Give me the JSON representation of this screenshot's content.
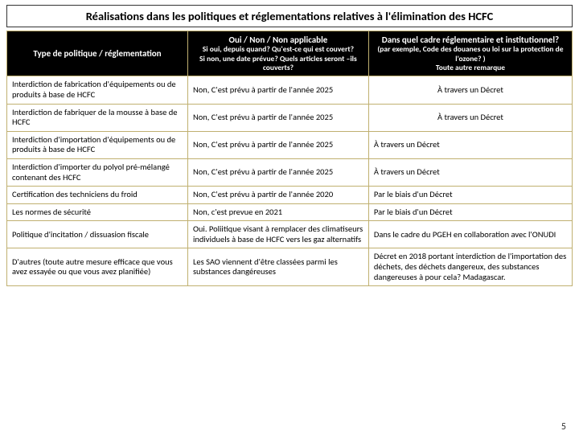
{
  "title": "Réalisations dans les politiques et réglementations relatives à l'élimination des HCFC",
  "page_number": "5",
  "header_bg": "#000000",
  "border_color": "#c0b070",
  "columns": [
    {
      "main": "Type de politique / réglementation",
      "sub": ""
    },
    {
      "main": "Oui / Non / Non applicable",
      "sub": "Si oui, depuis quand? Qu'est-ce qui est couvert?\nSi non, une date prévue? Quels articles seront –ils couverts?"
    },
    {
      "main": "Dans quel cadre réglementaire et institutionnel?",
      "sub": "(par exemple, Code des douanes ou loi sur la protection de l'ozone? )\nToute autre remarque"
    }
  ],
  "rows": [
    {
      "c1": "Interdiction de fabrication d'équipements ou de produits à base de HCFC",
      "c2": "Non, C'est prévu à partir de l'année 2025",
      "c3": "À travers un Décret",
      "c3_align": "center"
    },
    {
      "c1": "Interdiction de fabriquer de la mousse à base de HCFC",
      "c2": "Non, C'est prévu à partir de l'année 2025",
      "c3": "À travers un Décret",
      "c3_align": "center"
    },
    {
      "c1": "Interdiction d'importation d'équipements ou de produits à base de HCFC",
      "c2": "Non, C'est prévu à partir de l'année 2025",
      "c3": "À travers un Décret",
      "c3_align": "left"
    },
    {
      "c1": "Interdiction d'importer du polyol pré-mélangé contenant des HCFC",
      "c2": "Non, C'est prévu à partir de l'année 2025",
      "c3": "À travers un Décret",
      "c3_align": "left"
    },
    {
      "c1": "Certification des techniciens du froid",
      "c2": "Non, C'est prévu à partir de l'année 2020",
      "c3": "Par le biais d'un Décret",
      "c3_align": "left"
    },
    {
      "c1": "Les normes de sécurité",
      "c2": "Non, c'est prevue en 2021",
      "c3": "Par le biais d'un Décret",
      "c3_align": "left"
    },
    {
      "c1": "Politique d'incitation / dissuasion fiscale",
      "c2": "Oui. Poliitique visant à remplacer des climatiseurs individuels à base de HCFC vers les gaz alternatifs",
      "c3": "Dans le cadre du PGEH en collaboration avec l'ONUDI",
      "c3_align": "left"
    },
    {
      "c1": "D'autres (toute autre mesure efficace que vous avez essayée ou que vous avez planifiée)",
      "c2": "Les SAO viennent d'être classées parmi les substances dangéreuses",
      "c3": "Décret en 2018 portant interdiction de l'importation des déchets, des déchets dangereux, des substances dangereuses à pour cela? Madagascar.",
      "c3_align": "left"
    }
  ]
}
